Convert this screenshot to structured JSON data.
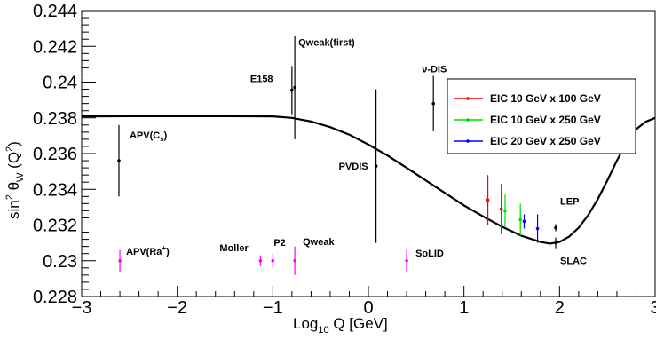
{
  "chart_data": {
    "type": "scatter",
    "xlabel": "Log10 Q [GeV]",
    "xlabel_main": "Log",
    "xlabel_sub": "10",
    "xlabel_rest": " Q [GeV]",
    "ylabel": "sin2 θW (Q2)",
    "ylabel_parts": {
      "a": "sin",
      "a_sup": "2",
      "b": " θ",
      "b_sub": "W",
      "c": " (Q",
      "c_sup": "2",
      "d": ")"
    },
    "xlim": [
      -3,
      3
    ],
    "ylim": [
      0.228,
      0.244
    ],
    "x_ticks": [
      -3,
      -2,
      -1,
      0,
      1,
      2,
      3
    ],
    "x_tick_labels": [
      "−3",
      "−2",
      "−1",
      "0",
      "1",
      "2",
      "3"
    ],
    "y_ticks": [
      0.228,
      0.23,
      0.232,
      0.234,
      0.236,
      0.238,
      0.24,
      0.242,
      0.244
    ],
    "y_tick_labels": [
      "0.228",
      "0.23",
      "0.232",
      "0.234",
      "0.236",
      "0.238",
      "0.24",
      "0.242",
      "0.244"
    ],
    "grid": false,
    "legend_position": "top-right",
    "theory_curve": {
      "x": [
        -3.0,
        -2.5,
        -2.0,
        -1.5,
        -1.0,
        -0.8,
        -0.6,
        -0.4,
        -0.2,
        0.0,
        0.2,
        0.4,
        0.6,
        0.8,
        1.0,
        1.2,
        1.4,
        1.6,
        1.8,
        1.9,
        2.0,
        2.1,
        2.2,
        2.3,
        2.4,
        2.5,
        2.6,
        2.7,
        2.8,
        2.9,
        3.0
      ],
      "y": [
        0.23808,
        0.23809,
        0.23809,
        0.23809,
        0.23808,
        0.238,
        0.2378,
        0.23748,
        0.23706,
        0.2365,
        0.23589,
        0.2352,
        0.2345,
        0.2338,
        0.2331,
        0.23248,
        0.2319,
        0.2314,
        0.23105,
        0.23096,
        0.23105,
        0.23135,
        0.23185,
        0.23255,
        0.23345,
        0.2345,
        0.2356,
        0.2366,
        0.23735,
        0.23778,
        0.238
      ]
    },
    "measurements": [
      {
        "label": "APV(Cs)",
        "label_main": "APV(C",
        "label_sub": "s",
        "label_tail": ")",
        "x": -2.61,
        "y": 0.2356,
        "yerr": 0.002,
        "color": "#000000"
      },
      {
        "label": "E158",
        "x": -0.8,
        "y": 0.23955,
        "yerr": 0.00135,
        "color": "#000000"
      },
      {
        "label": "Qweak(first)",
        "x": -0.77,
        "y": 0.2397,
        "yerr": 0.0029,
        "color": "#000000"
      },
      {
        "label": "PVDIS",
        "x": 0.08,
        "y": 0.2353,
        "yerr": 0.0043,
        "color": "#000000"
      },
      {
        "label": "ν-DIS",
        "x": 0.68,
        "y": 0.2388,
        "yerr": 0.00155,
        "color": "#000000"
      },
      {
        "label": "LEP",
        "x": 1.96,
        "y": 0.23185,
        "yerr": 0.0002,
        "color": "#000000"
      },
      {
        "label": "SLAC",
        "x": 1.96,
        "y": 0.231,
        "yerr": 0.0003,
        "color": "#000000"
      }
    ],
    "projections": [
      {
        "label": "APV(Ra+)",
        "label_main": "APV(Ra",
        "label_sup": "+",
        "label_tail": ")",
        "x": -2.6,
        "y": 0.23,
        "yerr": 0.0006,
        "color": "#ff00ff"
      },
      {
        "label": "Moller",
        "x": -1.13,
        "y": 0.23,
        "yerr": 0.0003,
        "color": "#ff00ff"
      },
      {
        "label": "P2",
        "x": -1.0,
        "y": 0.23,
        "yerr": 0.0004,
        "color": "#ff00ff"
      },
      {
        "label": "Qweak",
        "x": -0.77,
        "y": 0.23,
        "yerr": 0.0008,
        "color": "#ff00ff"
      },
      {
        "label": "SoLID",
        "x": 0.4,
        "y": 0.23,
        "yerr": 0.0006,
        "color": "#ff00ff"
      }
    ],
    "series": [
      {
        "name": "EIC 10 GeV x 100 GeV",
        "color": "#ff0000",
        "points": [
          {
            "x": 1.25,
            "y": 0.2334,
            "yerr": 0.0014
          },
          {
            "x": 1.39,
            "y": 0.2329,
            "yerr": 0.0014
          }
        ]
      },
      {
        "name": "EIC 10 GeV x 250 GeV",
        "color": "#00dd00",
        "points": [
          {
            "x": 1.43,
            "y": 0.2328,
            "yerr": 0.0009
          },
          {
            "x": 1.59,
            "y": 0.2323,
            "yerr": 0.0009
          }
        ]
      },
      {
        "name": "EIC 20 GeV x 250 GeV",
        "color": "#0000ff",
        "points": [
          {
            "x": 1.63,
            "y": 0.2322,
            "yerr": 0.0004
          },
          {
            "x": 1.77,
            "y": 0.2318,
            "yerr": 0.0008
          }
        ]
      }
    ]
  }
}
